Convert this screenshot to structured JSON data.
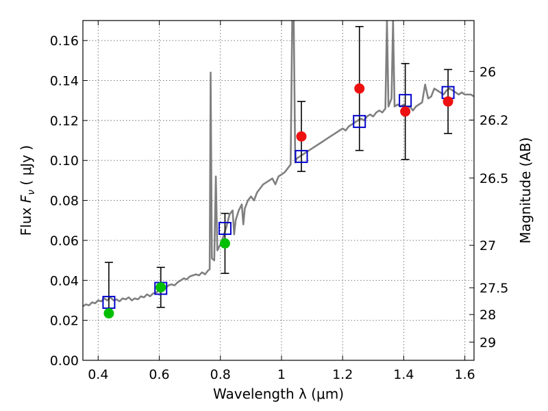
{
  "chart_data": {
    "type": "scatter",
    "xlabel": "Wavelength  λ (μm)",
    "ylabel_prefix": "Flux ",
    "ylabel_symbol": "F",
    "ylabel_sub": "ν",
    "ylabel_suffix": " ( μJy )",
    "y2label": "Magnitude (AB)",
    "xlim": [
      0.35,
      1.63
    ],
    "ylim": [
      0.0,
      0.17
    ],
    "grid": true,
    "x_ticks": [
      0.4,
      0.6,
      0.8,
      1.0,
      1.2,
      1.4,
      1.6
    ],
    "x_tick_labels": [
      "0.4",
      "0.6",
      "0.8",
      "1",
      "1.2",
      "1.4",
      "1.6"
    ],
    "y_ticks": [
      0.0,
      0.02,
      0.04,
      0.06,
      0.08,
      0.1,
      0.12,
      0.14,
      0.16
    ],
    "y_tick_labels": [
      "0.00",
      "0.02",
      "0.04",
      "0.06",
      "0.08",
      "0.10",
      "0.12",
      "0.14",
      "0.16"
    ],
    "mag_ticks": [
      26,
      26.2,
      26.5,
      27,
      27.5,
      28,
      29
    ],
    "mag_tick_labels": [
      "26",
      "26.2",
      "26.5",
      "27",
      "27.5",
      "28",
      "29"
    ],
    "photometry_green": [
      {
        "x": 0.435,
        "y": 0.0235,
        "err_lo": 0.024,
        "err_hi": 0.049
      },
      {
        "x": 0.605,
        "y": 0.0365,
        "err_lo": 0.0265,
        "err_hi": 0.0465
      },
      {
        "x": 0.815,
        "y": 0.0585,
        "err_lo": 0.0435,
        "err_hi": 0.0735
      }
    ],
    "photometry_red": [
      {
        "x": 1.065,
        "y": 0.112,
        "err_lo": 0.0945,
        "err_hi": 0.1295
      },
      {
        "x": 1.255,
        "y": 0.136,
        "err_lo": 0.105,
        "err_hi": 0.167
      },
      {
        "x": 1.405,
        "y": 0.1245,
        "err_lo": 0.1005,
        "err_hi": 0.1485
      },
      {
        "x": 1.545,
        "y": 0.1295,
        "err_lo": 0.1135,
        "err_hi": 0.1455
      }
    ],
    "model_points": [
      {
        "x": 0.435,
        "y": 0.029
      },
      {
        "x": 0.605,
        "y": 0.036
      },
      {
        "x": 0.815,
        "y": 0.066
      },
      {
        "x": 1.065,
        "y": 0.102
      },
      {
        "x": 1.255,
        "y": 0.1195
      },
      {
        "x": 1.405,
        "y": 0.13
      },
      {
        "x": 1.545,
        "y": 0.134
      }
    ],
    "spectrum": [
      [
        0.35,
        0.027
      ],
      [
        0.36,
        0.028
      ],
      [
        0.37,
        0.0275
      ],
      [
        0.38,
        0.029
      ],
      [
        0.39,
        0.0285
      ],
      [
        0.4,
        0.03
      ],
      [
        0.41,
        0.0295
      ],
      [
        0.42,
        0.031
      ],
      [
        0.43,
        0.03
      ],
      [
        0.44,
        0.0315
      ],
      [
        0.45,
        0.03
      ],
      [
        0.46,
        0.0305
      ],
      [
        0.47,
        0.0295
      ],
      [
        0.48,
        0.031
      ],
      [
        0.49,
        0.0305
      ],
      [
        0.5,
        0.0315
      ],
      [
        0.51,
        0.03
      ],
      [
        0.52,
        0.031
      ],
      [
        0.53,
        0.0305
      ],
      [
        0.54,
        0.032
      ],
      [
        0.55,
        0.0315
      ],
      [
        0.56,
        0.033
      ],
      [
        0.57,
        0.032
      ],
      [
        0.58,
        0.0335
      ],
      [
        0.59,
        0.034
      ],
      [
        0.6,
        0.035
      ],
      [
        0.61,
        0.0345
      ],
      [
        0.62,
        0.036
      ],
      [
        0.63,
        0.0375
      ],
      [
        0.64,
        0.038
      ],
      [
        0.65,
        0.0375
      ],
      [
        0.66,
        0.039
      ],
      [
        0.67,
        0.04
      ],
      [
        0.68,
        0.041
      ],
      [
        0.69,
        0.0405
      ],
      [
        0.7,
        0.042
      ],
      [
        0.71,
        0.0425
      ],
      [
        0.72,
        0.043
      ],
      [
        0.73,
        0.0425
      ],
      [
        0.74,
        0.044
      ],
      [
        0.75,
        0.043
      ],
      [
        0.76,
        0.045
      ],
      [
        0.765,
        0.0455
      ],
      [
        0.768,
        0.144
      ],
      [
        0.772,
        0.051
      ],
      [
        0.78,
        0.05
      ],
      [
        0.785,
        0.092
      ],
      [
        0.79,
        0.055
      ],
      [
        0.8,
        0.058
      ],
      [
        0.81,
        0.062
      ],
      [
        0.82,
        0.067
      ],
      [
        0.83,
        0.073
      ],
      [
        0.84,
        0.075
      ],
      [
        0.845,
        0.063
      ],
      [
        0.85,
        0.07
      ],
      [
        0.86,
        0.075
      ],
      [
        0.87,
        0.078
      ],
      [
        0.875,
        0.068
      ],
      [
        0.88,
        0.076
      ],
      [
        0.89,
        0.08
      ],
      [
        0.9,
        0.082
      ],
      [
        0.91,
        0.08
      ],
      [
        0.92,
        0.084
      ],
      [
        0.93,
        0.086
      ],
      [
        0.94,
        0.088
      ],
      [
        0.95,
        0.089
      ],
      [
        0.96,
        0.09
      ],
      [
        0.97,
        0.091
      ],
      [
        0.98,
        0.088
      ],
      [
        0.99,
        0.092
      ],
      [
        1.0,
        0.093
      ],
      [
        1.01,
        0.094
      ],
      [
        1.02,
        0.096
      ],
      [
        1.03,
        0.098
      ],
      [
        1.035,
        0.17
      ],
      [
        1.04,
        0.17
      ],
      [
        1.045,
        0.099
      ],
      [
        1.05,
        0.101
      ],
      [
        1.06,
        0.102
      ],
      [
        1.07,
        0.103
      ],
      [
        1.08,
        0.104
      ],
      [
        1.09,
        0.105
      ],
      [
        1.1,
        0.106
      ],
      [
        1.11,
        0.107
      ],
      [
        1.12,
        0.108
      ],
      [
        1.13,
        0.109
      ],
      [
        1.14,
        0.11
      ],
      [
        1.15,
        0.111
      ],
      [
        1.16,
        0.112
      ],
      [
        1.17,
        0.113
      ],
      [
        1.18,
        0.114
      ],
      [
        1.19,
        0.115
      ],
      [
        1.2,
        0.116
      ],
      [
        1.21,
        0.115
      ],
      [
        1.22,
        0.117
      ],
      [
        1.23,
        0.118
      ],
      [
        1.24,
        0.119
      ],
      [
        1.25,
        0.12
      ],
      [
        1.26,
        0.121
      ],
      [
        1.27,
        0.12
      ],
      [
        1.28,
        0.122
      ],
      [
        1.29,
        0.123
      ],
      [
        1.3,
        0.122
      ],
      [
        1.31,
        0.124
      ],
      [
        1.32,
        0.125
      ],
      [
        1.33,
        0.124
      ],
      [
        1.34,
        0.126
      ],
      [
        1.345,
        0.17
      ],
      [
        1.35,
        0.127
      ],
      [
        1.36,
        0.131
      ],
      [
        1.365,
        0.17
      ],
      [
        1.37,
        0.127
      ],
      [
        1.38,
        0.128
      ],
      [
        1.39,
        0.127
      ],
      [
        1.4,
        0.128
      ],
      [
        1.41,
        0.126
      ],
      [
        1.42,
        0.127
      ],
      [
        1.43,
        0.125
      ],
      [
        1.44,
        0.127
      ],
      [
        1.45,
        0.128
      ],
      [
        1.46,
        0.129
      ],
      [
        1.47,
        0.138
      ],
      [
        1.48,
        0.131
      ],
      [
        1.49,
        0.132
      ],
      [
        1.5,
        0.136
      ],
      [
        1.51,
        0.135
      ],
      [
        1.52,
        0.134
      ],
      [
        1.53,
        0.133
      ],
      [
        1.54,
        0.135
      ],
      [
        1.55,
        0.136
      ],
      [
        1.56,
        0.135
      ],
      [
        1.57,
        0.134
      ],
      [
        1.58,
        0.133
      ],
      [
        1.59,
        0.134
      ],
      [
        1.6,
        0.133
      ],
      [
        1.61,
        0.133
      ],
      [
        1.62,
        0.133
      ],
      [
        1.63,
        0.132
      ]
    ],
    "colors": {
      "spectrum": "#7f7f7f",
      "green_points": "#00bf00",
      "red_points": "#ee1111",
      "model_boxes": "#0000cc",
      "error_bars": "#000000"
    }
  }
}
